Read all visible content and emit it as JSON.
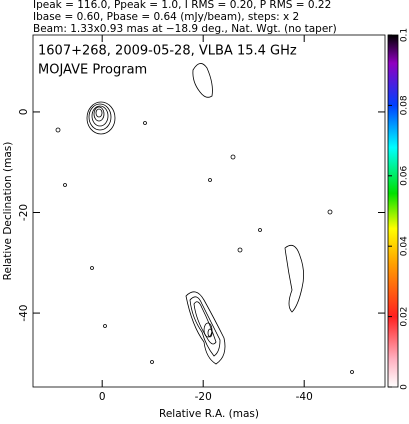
{
  "chart_data": {
    "type": "contour",
    "header": [
      "Ipeak = 116.0, Ppeak = 1.0, I RMS = 0.20, P RMS = 0.22",
      "Ibase = 0.60, Pbase = 0.64 (mJy/beam), steps: x 2",
      "Beam: 1.33x0.93 mas at −18.9 deg., Nat. Wgt. (no taper)"
    ],
    "title": "1607+268, 2009-05-28, VLBA 15.4 GHz",
    "subtitle": "MOJAVE Program",
    "x_label": "Relative R.A. (mas)",
    "y_label": "Relative Declination (mas)",
    "xlim": [
      13.7,
      -56
    ],
    "xticks": [
      0,
      -20,
      -40
    ],
    "ylim": [
      -54.7,
      15.3
    ],
    "yticks": [
      -40,
      -20,
      0
    ],
    "colorbar": {
      "lim": [
        0,
        0.1
      ],
      "ticks": [
        0,
        0.02,
        0.04,
        0.06,
        0.08,
        0.1
      ]
    }
  }
}
